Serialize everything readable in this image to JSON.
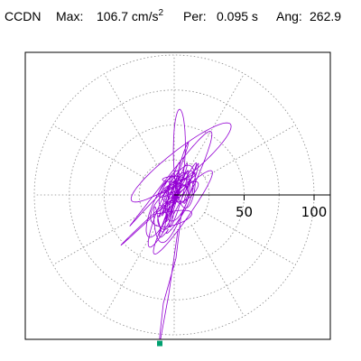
{
  "header": {
    "station": "CCDN",
    "max_label": "Max:",
    "max_value": "106.7 cm/s",
    "max_exp": "2",
    "per_label": "Per:",
    "per_value": "0.095 s",
    "ang_label": "Ang:",
    "ang_value": "262.9"
  },
  "chart_data": {
    "type": "polar-particle-motion",
    "units": "cm/s^2",
    "max_amplitude": 106.7,
    "azimuth_deg": 262.9,
    "period_s": 0.095,
    "radial_ticks": [
      50,
      100
    ],
    "rings": [
      25,
      50,
      75,
      100
    ],
    "spoke_step_deg": 30,
    "grid": true,
    "trace_color": "#9400d3",
    "marker_color": "#00a070",
    "max_marker": {
      "radius": 106.7,
      "azimuth_deg": 262.9
    },
    "frame_color": "#000000",
    "grid_color": "#888888"
  }
}
